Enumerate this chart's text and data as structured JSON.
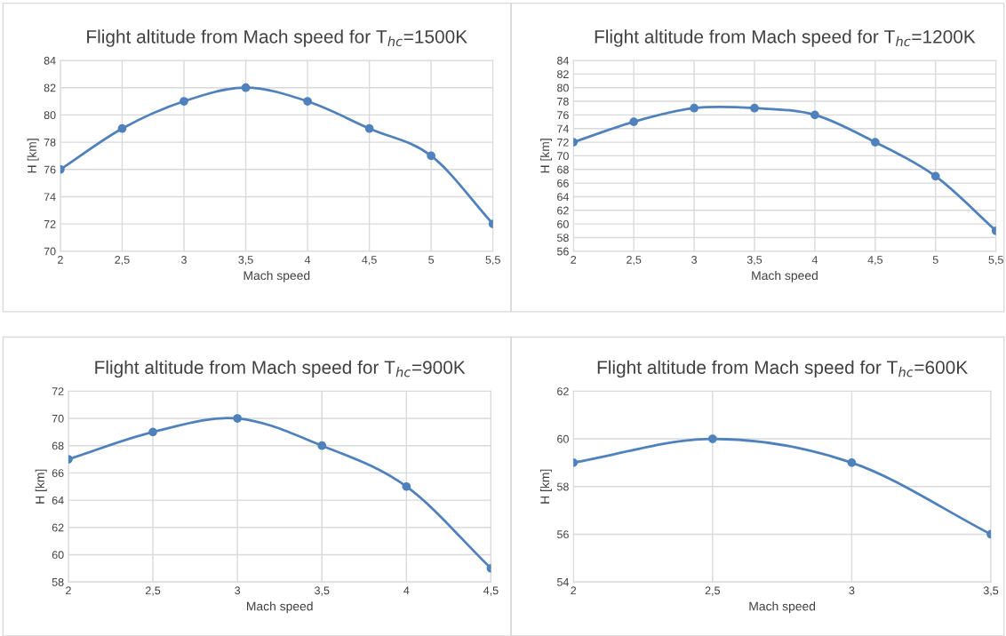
{
  "chart_data": [
    {
      "type": "line",
      "title": "Flight altitude from Mach speed for T$_{hc}$=1500K",
      "xlabel": "Mach speed",
      "ylabel": "H [km]",
      "x": [
        2,
        2.5,
        3,
        3.5,
        4,
        4.5,
        5,
        5.5
      ],
      "series": [
        {
          "color": "#4f81bd",
          "values": [
            76,
            79,
            81,
            82,
            81,
            79,
            77,
            72
          ]
        }
      ],
      "xlim": [
        2,
        5.5
      ],
      "xticks": [
        2,
        {
          "value": 2.5,
          "label": "2,5"
        },
        3,
        {
          "value": 3.5,
          "label": "3,5"
        },
        4,
        {
          "value": 4.5,
          "label": "4,5"
        },
        5,
        {
          "value": 5.5,
          "label": "5,5"
        }
      ],
      "ylim": [
        70,
        84
      ],
      "yticks": [
        70,
        72,
        74,
        76,
        78,
        80,
        82,
        84
      ],
      "grid": true,
      "marker": "circle",
      "line_style": "solid"
    },
    {
      "type": "line",
      "title": "Flight altitude from Mach speed for T$_{hc}$=1200K",
      "xlabel": "Mach speed",
      "ylabel": "H [km]",
      "x": [
        2,
        2.5,
        3,
        3.5,
        4,
        4.5,
        5,
        5.5
      ],
      "series": [
        {
          "color": "#4f81bd",
          "values": [
            72,
            75,
            77,
            77,
            76,
            72,
            67,
            59
          ]
        }
      ],
      "xlim": [
        2,
        5.5
      ],
      "xticks": [
        2,
        {
          "value": 2.5,
          "label": "2,5"
        },
        3,
        {
          "value": 3.5,
          "label": "3,5"
        },
        4,
        {
          "value": 4.5,
          "label": "4,5"
        },
        5,
        {
          "value": 5.5,
          "label": "5,5"
        }
      ],
      "ylim": [
        56,
        84
      ],
      "yticks": [
        56,
        58,
        60,
        62,
        64,
        66,
        68,
        70,
        72,
        74,
        76,
        78,
        80,
        82,
        84
      ],
      "grid": true,
      "marker": "circle",
      "line_style": "solid"
    },
    {
      "type": "line",
      "title": "Flight altitude from Mach speed for T$_{hc}$=900K",
      "xlabel": "Mach speed",
      "ylabel": "H [km]",
      "x": [
        2,
        2.5,
        3,
        3.5,
        4,
        4.5
      ],
      "series": [
        {
          "color": "#4f81bd",
          "values": [
            67,
            69,
            70,
            68,
            65,
            59
          ]
        }
      ],
      "xlim": [
        2,
        4.5
      ],
      "xticks": [
        2,
        {
          "value": 2.5,
          "label": "2,5"
        },
        3,
        {
          "value": 3.5,
          "label": "3,5"
        },
        4,
        {
          "value": 4.5,
          "label": "4,5"
        }
      ],
      "ylim": [
        58,
        72
      ],
      "yticks": [
        58,
        60,
        62,
        64,
        66,
        68,
        70,
        72
      ],
      "grid": true,
      "marker": "circle",
      "line_style": "solid"
    },
    {
      "type": "line",
      "title": "Flight altitude from Mach speed for T$_{hc}$=600K",
      "xlabel": "Mach speed",
      "ylabel": "H [km]",
      "x": [
        2,
        2.5,
        3,
        3.5
      ],
      "series": [
        {
          "color": "#4f81bd",
          "values": [
            59,
            60,
            59,
            56
          ]
        }
      ],
      "xlim": [
        2,
        3.5
      ],
      "xticks": [
        2,
        {
          "value": 2.5,
          "label": "2,5"
        },
        3,
        {
          "value": 3.5,
          "label": "3,5"
        }
      ],
      "ylim": [
        54,
        62
      ],
      "yticks": [
        54,
        56,
        58,
        60,
        62
      ],
      "grid": true,
      "marker": "circle",
      "line_style": "solid"
    }
  ]
}
